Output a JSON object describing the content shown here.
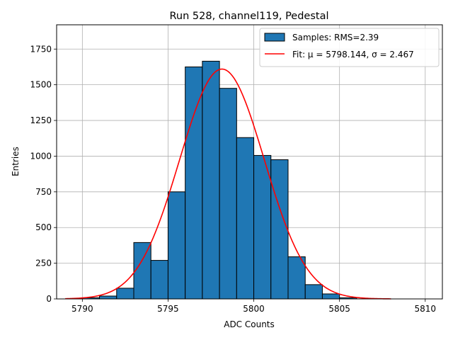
{
  "chart_data": {
    "type": "bar",
    "title": "Run 528, channel119, Pedestal",
    "xlabel": "ADC Counts",
    "ylabel": "Entries",
    "xlim": [
      5788.5,
      5811.0
    ],
    "ylim": [
      0,
      1920
    ],
    "xticks": [
      5790,
      5795,
      5800,
      5805,
      5810
    ],
    "yticks": [
      0,
      250,
      500,
      750,
      1000,
      1250,
      1500,
      1750
    ],
    "grid": true,
    "legend_position": "top-right",
    "histogram": {
      "name": "Samples: RMS=2.39",
      "color": "#1f77b4",
      "bins": [
        {
          "x0": 5790,
          "x1": 5791,
          "count": 8
        },
        {
          "x0": 5791,
          "x1": 5792,
          "count": 20
        },
        {
          "x0": 5792,
          "x1": 5793,
          "count": 75
        },
        {
          "x0": 5793,
          "x1": 5794,
          "count": 395
        },
        {
          "x0": 5794,
          "x1": 5795,
          "count": 270
        },
        {
          "x0": 5795,
          "x1": 5796,
          "count": 750
        },
        {
          "x0": 5796,
          "x1": 5797,
          "count": 1625
        },
        {
          "x0": 5797,
          "x1": 5798,
          "count": 1665
        },
        {
          "x0": 5798,
          "x1": 5799,
          "count": 1475
        },
        {
          "x0": 5799,
          "x1": 5800,
          "count": 1130
        },
        {
          "x0": 5800,
          "x1": 5801,
          "count": 1005
        },
        {
          "x0": 5801,
          "x1": 5802,
          "count": 975
        },
        {
          "x0": 5802,
          "x1": 5803,
          "count": 295
        },
        {
          "x0": 5803,
          "x1": 5804,
          "count": 100
        },
        {
          "x0": 5804,
          "x1": 5805,
          "count": 35
        },
        {
          "x0": 5805,
          "x1": 5806,
          "count": 8
        }
      ]
    },
    "fit": {
      "name": "Fit: μ = 5798.144, σ = 2.467",
      "color": "#ff0000",
      "mu": 5798.144,
      "sigma": 2.467,
      "amplitude": 1610,
      "x_range": [
        5789,
        5808
      ]
    }
  }
}
